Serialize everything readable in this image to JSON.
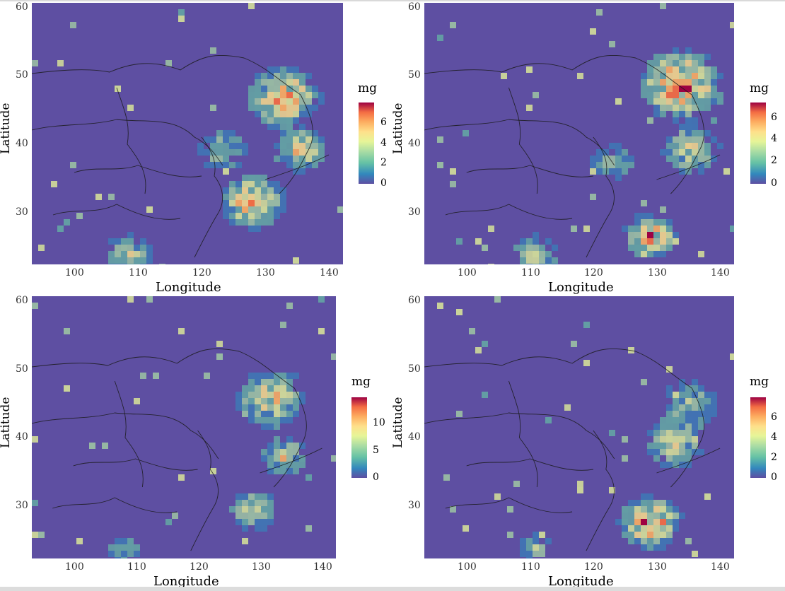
{
  "panels": [
    {
      "name": "panel-top-left",
      "xlabel": "Longitude",
      "ylabel": "Latitude",
      "x_ticks": [
        "100",
        "110",
        "120",
        "130",
        "140"
      ],
      "y_ticks": [
        "60",
        "50",
        "40",
        "30"
      ],
      "legend": {
        "title": "mg",
        "ticks": [
          "6",
          "4",
          "2",
          "0"
        ],
        "max": 7.5
      }
    },
    {
      "name": "panel-top-right",
      "xlabel": "Longitude",
      "ylabel": "Latitude",
      "x_ticks": [
        "100",
        "110",
        "120",
        "130",
        "140"
      ],
      "y_ticks": [
        "60",
        "50",
        "40",
        "30"
      ],
      "legend": {
        "title": "mg",
        "ticks": [
          "6",
          "4",
          "2",
          "0"
        ],
        "max": 7
      }
    },
    {
      "name": "panel-bottom-left",
      "xlabel": "Longitude",
      "ylabel": "Latitude",
      "x_ticks": [
        "100",
        "110",
        "120",
        "130",
        "140"
      ],
      "y_ticks": [
        "60",
        "50",
        "40",
        "30"
      ],
      "legend": {
        "title": "mg",
        "ticks": [
          "10",
          "5",
          "0"
        ],
        "max": 14
      }
    },
    {
      "name": "panel-bottom-right",
      "xlabel": "Longitude",
      "ylabel": "Latitude",
      "x_ticks": [
        "100",
        "110",
        "120",
        "130",
        "140"
      ],
      "y_ticks": [
        "60",
        "50",
        "40",
        "30"
      ],
      "legend": {
        "title": "mg",
        "ticks": [
          "6",
          "4",
          "2",
          "0"
        ],
        "max": 7.5
      }
    }
  ],
  "map": {
    "lon_range": [
      93,
      142
    ],
    "lat_range": [
      22,
      61
    ],
    "colorscale": [
      "#5e4fa2",
      "#3288bd",
      "#66c2a5",
      "#abdda4",
      "#e6f598",
      "#fee08b",
      "#fdae61",
      "#f46d43",
      "#9e0142"
    ]
  }
}
